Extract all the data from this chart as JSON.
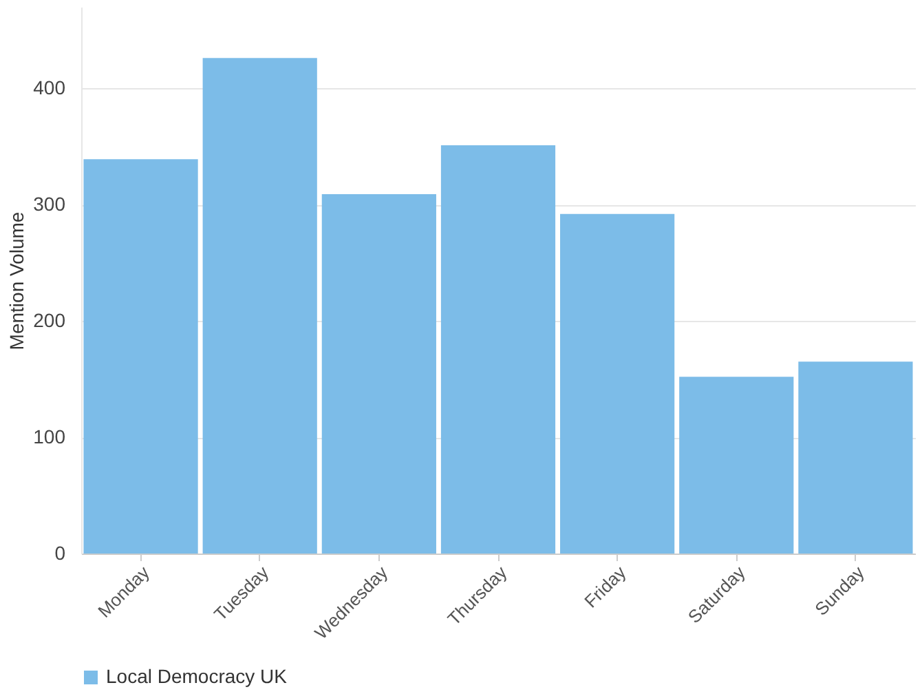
{
  "chart_data": {
    "type": "bar",
    "ylabel": "Mention Volume",
    "categories": [
      "Monday",
      "Tuesday",
      "Wednesday",
      "Thursday",
      "Friday",
      "Saturday",
      "Sunday"
    ],
    "series": [
      {
        "name": "Local Democracy UK",
        "color": "#7cbce8",
        "values": [
          339,
          426,
          309,
          351,
          292,
          152,
          165
        ]
      }
    ],
    "ylim": [
      0,
      470
    ],
    "yticks": [
      0,
      100,
      200,
      300,
      400
    ],
    "grid": "y",
    "legend": "bottom"
  }
}
